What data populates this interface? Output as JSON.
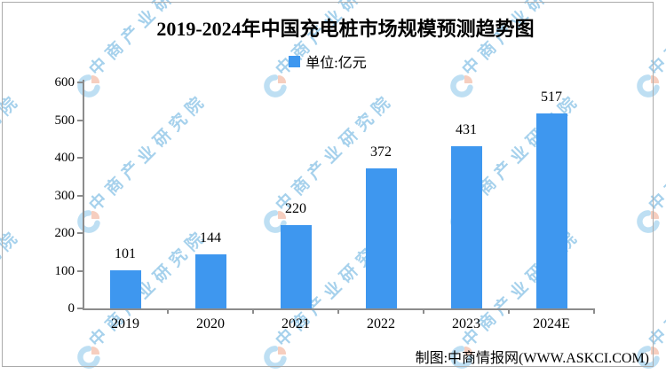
{
  "title": "2019-2024年中国充电桩市场规模预测趋势图",
  "legend": {
    "label": "单位:亿元"
  },
  "chart_data": {
    "type": "bar",
    "categories": [
      "2019",
      "2020",
      "2021",
      "2022",
      "2023",
      "2024E"
    ],
    "values": [
      101,
      144,
      220,
      372,
      431,
      517
    ],
    "title": "2019-2024年中国充电桩市场规模预测趋势图",
    "unit_label": "单位:亿元",
    "xlabel": "",
    "ylabel": "亿元",
    "ylim": [
      0,
      600
    ],
    "ytick_step": 100,
    "grid": false,
    "legend_position": "top-center",
    "bar_color": "#3E97EF"
  },
  "footer": {
    "credit": "制图:中商情报网(WWW.ASKCI.COM)"
  },
  "watermark": {
    "text": "中商产业研究院",
    "text_color": "#4FA5DB",
    "logo_blue": "#7FC0E8",
    "logo_red": "#EE9F80"
  },
  "colors": {
    "bar": "#3E97EF",
    "axis": "#8C8C8C",
    "text": "#000000",
    "frame": "#ABABAB"
  }
}
